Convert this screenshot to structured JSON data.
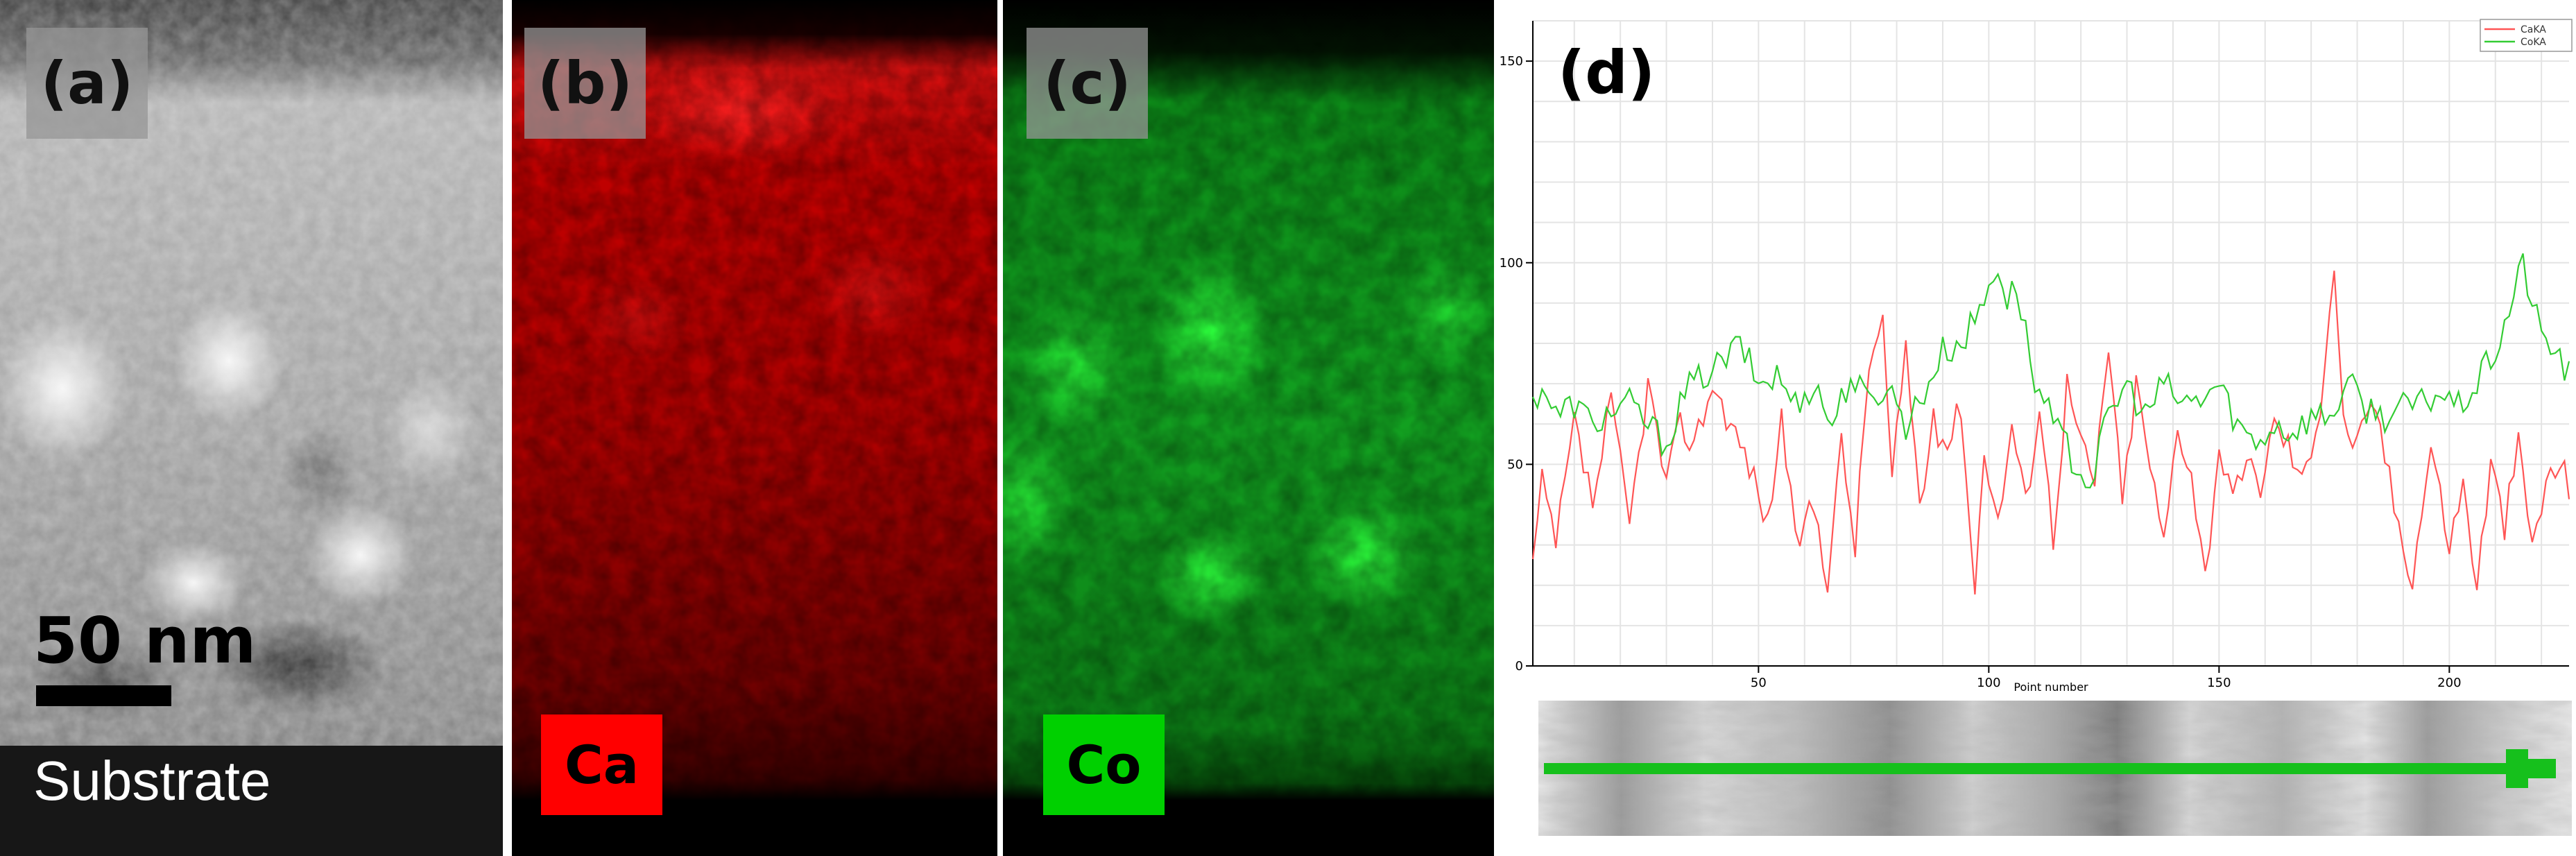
{
  "figure": {
    "panels": [
      {
        "label": "(a)",
        "scale_bar_text": "50 nm",
        "substrate_text": "Substrate"
      },
      {
        "label": "(b)",
        "element": "Ca",
        "color": "#ff0000"
      },
      {
        "label": "(c)",
        "element": "Co",
        "color": "#00d000"
      },
      {
        "label": "(d)"
      }
    ]
  },
  "chart_data": {
    "type": "line",
    "xlabel": "Point number",
    "ylabel": "",
    "xlim": [
      1,
      226
    ],
    "ylim": [
      0,
      160
    ],
    "x_ticks": [
      50,
      100,
      150,
      200
    ],
    "y_ticks": [
      0,
      50,
      100,
      150
    ],
    "grid": true,
    "legend_position": "top-right",
    "series": [
      {
        "name": "CaKA",
        "color": "#ff5555",
        "keypoints": [
          [
            1,
            25
          ],
          [
            3,
            45
          ],
          [
            6,
            30
          ],
          [
            10,
            60
          ],
          [
            14,
            40
          ],
          [
            18,
            65
          ],
          [
            22,
            35
          ],
          [
            26,
            70
          ],
          [
            30,
            45
          ],
          [
            33,
            60
          ],
          [
            36,
            55
          ],
          [
            40,
            70
          ],
          [
            44,
            60
          ],
          [
            48,
            50
          ],
          [
            52,
            35
          ],
          [
            55,
            62
          ],
          [
            58,
            30
          ],
          [
            62,
            40
          ],
          [
            65,
            22
          ],
          [
            68,
            55
          ],
          [
            71,
            30
          ],
          [
            74,
            75
          ],
          [
            77,
            85
          ],
          [
            79,
            45
          ],
          [
            82,
            80
          ],
          [
            85,
            40
          ],
          [
            88,
            60
          ],
          [
            91,
            55
          ],
          [
            94,
            65
          ],
          [
            97,
            18
          ],
          [
            99,
            55
          ],
          [
            102,
            35
          ],
          [
            105,
            60
          ],
          [
            108,
            40
          ],
          [
            111,
            65
          ],
          [
            114,
            32
          ],
          [
            117,
            70
          ],
          [
            120,
            55
          ],
          [
            123,
            45
          ],
          [
            126,
            80
          ],
          [
            129,
            40
          ],
          [
            132,
            70
          ],
          [
            135,
            50
          ],
          [
            138,
            30
          ],
          [
            141,
            60
          ],
          [
            144,
            48
          ],
          [
            147,
            22
          ],
          [
            150,
            55
          ],
          [
            153,
            40
          ],
          [
            156,
            50
          ],
          [
            159,
            45
          ],
          [
            162,
            60
          ],
          [
            165,
            55
          ],
          [
            168,
            45
          ],
          [
            172,
            65
          ],
          [
            175,
            100
          ],
          [
            177,
            60
          ],
          [
            180,
            55
          ],
          [
            184,
            65
          ],
          [
            188,
            40
          ],
          [
            192,
            22
          ],
          [
            196,
            55
          ],
          [
            200,
            30
          ],
          [
            203,
            45
          ],
          [
            206,
            20
          ],
          [
            209,
            50
          ],
          [
            212,
            35
          ],
          [
            215,
            55
          ],
          [
            218,
            30
          ],
          [
            221,
            45
          ],
          [
            224,
            50
          ],
          [
            226,
            45
          ]
        ]
      },
      {
        "name": "CoKA",
        "color": "#33cc33",
        "keypoints": [
          [
            1,
            65
          ],
          [
            3,
            70
          ],
          [
            6,
            62
          ],
          [
            10,
            65
          ],
          [
            14,
            60
          ],
          [
            18,
            63
          ],
          [
            22,
            65
          ],
          [
            26,
            60
          ],
          [
            30,
            55
          ],
          [
            34,
            68
          ],
          [
            38,
            72
          ],
          [
            42,
            75
          ],
          [
            46,
            80
          ],
          [
            50,
            70
          ],
          [
            54,
            72
          ],
          [
            58,
            65
          ],
          [
            62,
            70
          ],
          [
            66,
            60
          ],
          [
            70,
            72
          ],
          [
            74,
            65
          ],
          [
            78,
            70
          ],
          [
            82,
            60
          ],
          [
            86,
            68
          ],
          [
            90,
            78
          ],
          [
            94,
            80
          ],
          [
            98,
            88
          ],
          [
            102,
            100
          ],
          [
            104,
            90
          ],
          [
            106,
            95
          ],
          [
            110,
            70
          ],
          [
            114,
            60
          ],
          [
            118,
            52
          ],
          [
            122,
            45
          ],
          [
            126,
            62
          ],
          [
            130,
            70
          ],
          [
            134,
            62
          ],
          [
            138,
            70
          ],
          [
            142,
            65
          ],
          [
            146,
            66
          ],
          [
            150,
            70
          ],
          [
            154,
            60
          ],
          [
            158,
            55
          ],
          [
            162,
            60
          ],
          [
            166,
            58
          ],
          [
            170,
            62
          ],
          [
            174,
            62
          ],
          [
            178,
            70
          ],
          [
            182,
            64
          ],
          [
            186,
            62
          ],
          [
            190,
            64
          ],
          [
            194,
            65
          ],
          [
            198,
            68
          ],
          [
            202,
            64
          ],
          [
            206,
            70
          ],
          [
            210,
            78
          ],
          [
            213,
            88
          ],
          [
            216,
            100
          ],
          [
            218,
            90
          ],
          [
            220,
            82
          ],
          [
            223,
            78
          ],
          [
            226,
            72
          ]
        ]
      }
    ]
  }
}
